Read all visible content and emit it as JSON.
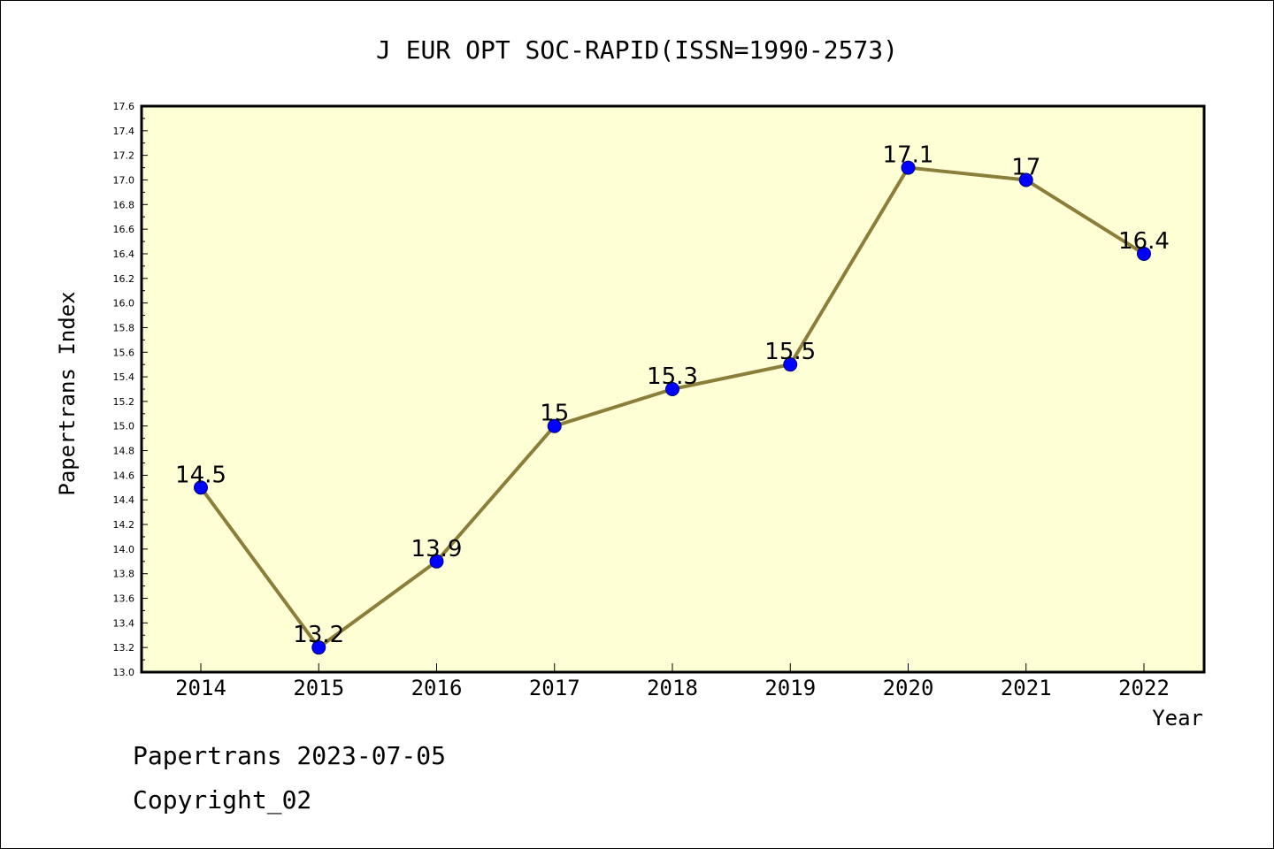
{
  "chart_data": {
    "type": "line",
    "title": "J EUR OPT SOC-RAPID(ISSN=1990-2573)",
    "xlabel": "Year",
    "ylabel": "Papertrans Index",
    "categories": [
      "2014",
      "2015",
      "2016",
      "2017",
      "2018",
      "2019",
      "2020",
      "2021",
      "2022"
    ],
    "series": [
      {
        "values": [
          14.5,
          13.2,
          13.9,
          15.0,
          15.3,
          15.5,
          17.1,
          17.0,
          16.4
        ],
        "labels": [
          "14.5",
          "13.2",
          "13.9",
          "15",
          "15.3",
          "15.5",
          "17.1",
          "17",
          "16.4"
        ]
      }
    ],
    "ylim": [
      13.0,
      17.6
    ],
    "yticks": [
      "13.0",
      "13.2",
      "13.4",
      "13.6",
      "13.8",
      "14.0",
      "14.2",
      "14.4",
      "14.6",
      "14.8",
      "15.0",
      "15.2",
      "15.4",
      "15.6",
      "15.8",
      "16.0",
      "16.2",
      "16.4",
      "16.6",
      "16.8",
      "17.0",
      "17.2",
      "17.4",
      "17.6"
    ],
    "grid": false,
    "legend": "none",
    "colors": {
      "plot_background": "#ffffd5",
      "line": "#8b7d3a",
      "marker": "#0000ff"
    }
  },
  "footer": {
    "source": "Papertrans 2023-07-05",
    "copyright": "Copyright_02"
  }
}
